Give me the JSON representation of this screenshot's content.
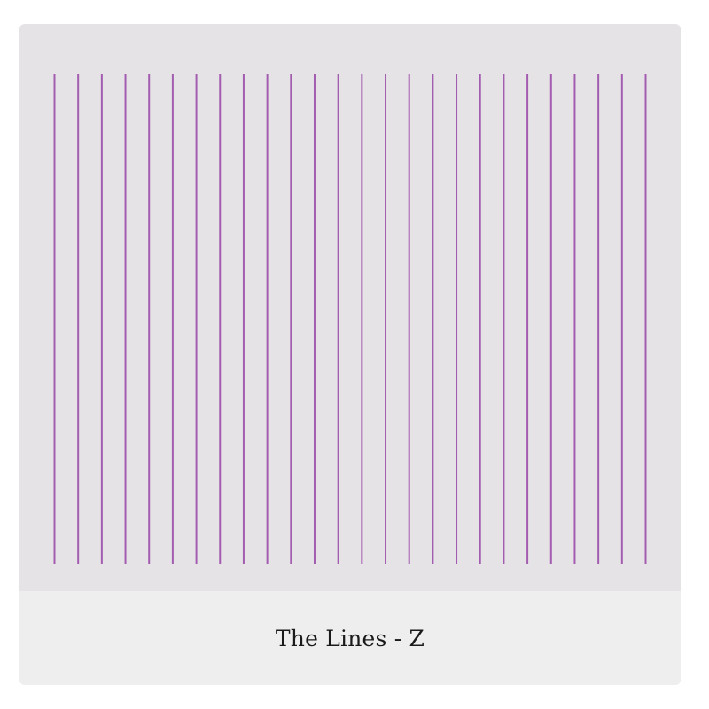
{
  "card": {
    "caption": "The Lines - Z"
  },
  "artwork": {
    "line_count": 26,
    "line_color": "#a35db0",
    "background_color": "#e6e3e6"
  }
}
